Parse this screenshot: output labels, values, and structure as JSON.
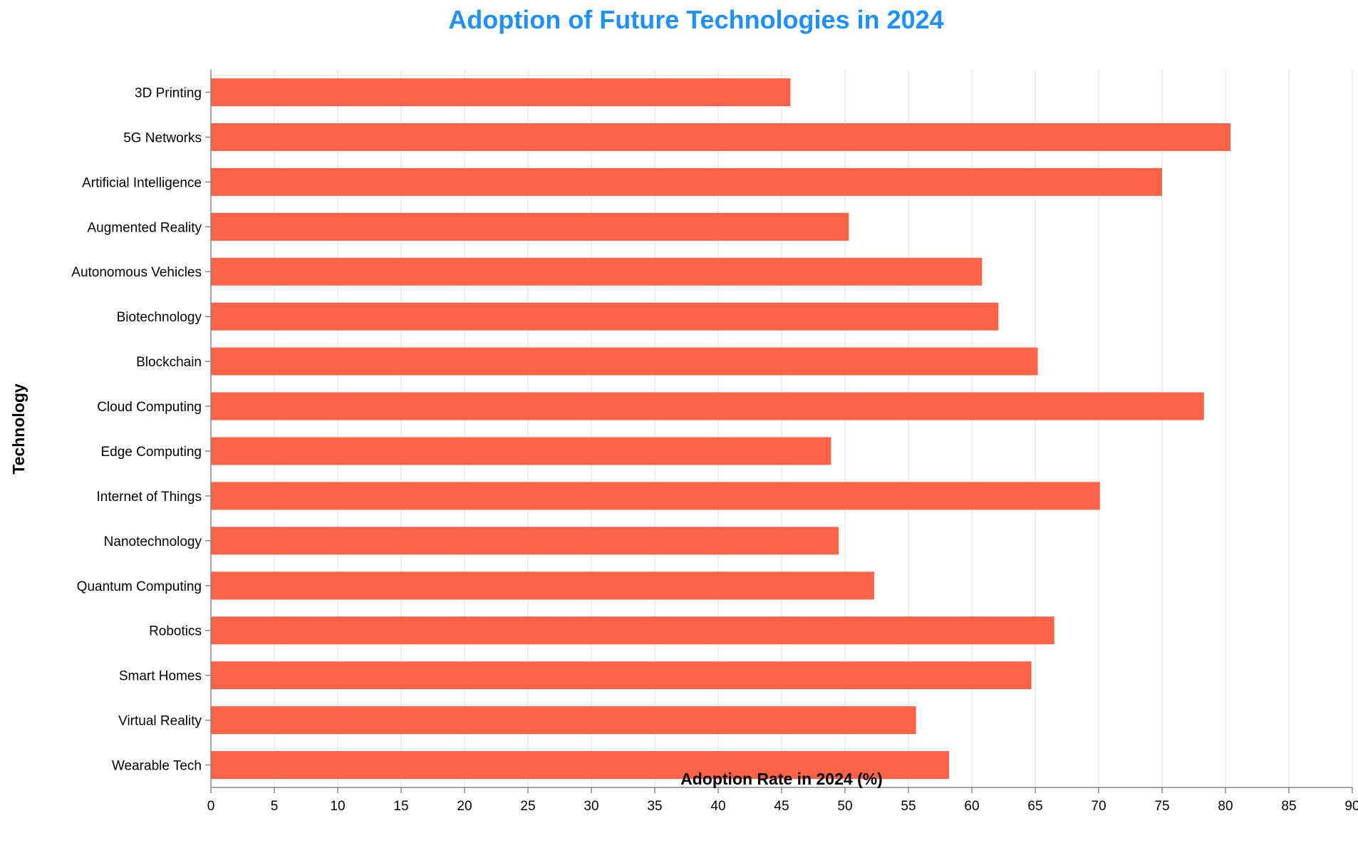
{
  "chart_data": {
    "type": "bar",
    "orientation": "horizontal",
    "title": "Adoption of Future Technologies in 2024",
    "xlabel": "Adoption Rate in 2024 (%)",
    "ylabel": "Technology",
    "xlim": [
      0,
      90
    ],
    "x_ticks": [
      0,
      5,
      10,
      15,
      20,
      25,
      30,
      35,
      40,
      45,
      50,
      55,
      60,
      65,
      70,
      75,
      80,
      85,
      90
    ],
    "grid": "vertical gridlines on",
    "categories": [
      "3D Printing",
      "5G Networks",
      "Artificial Intelligence",
      "Augmented Reality",
      "Autonomous Vehicles",
      "Biotechnology",
      "Blockchain",
      "Cloud Computing",
      "Edge Computing",
      "Internet of Things",
      "Nanotechnology",
      "Quantum Computing",
      "Robotics",
      "Smart Homes",
      "Virtual Reality",
      "Wearable Tech"
    ],
    "values": [
      45.7,
      80.4,
      75.0,
      50.3,
      60.8,
      62.1,
      65.2,
      78.3,
      48.9,
      70.1,
      49.5,
      52.3,
      66.5,
      64.7,
      55.6,
      58.2
    ]
  },
  "colors": {
    "bar": "#ff6347",
    "title": "#1e90ff",
    "grid": "#dddddd",
    "axis": "#888888"
  }
}
